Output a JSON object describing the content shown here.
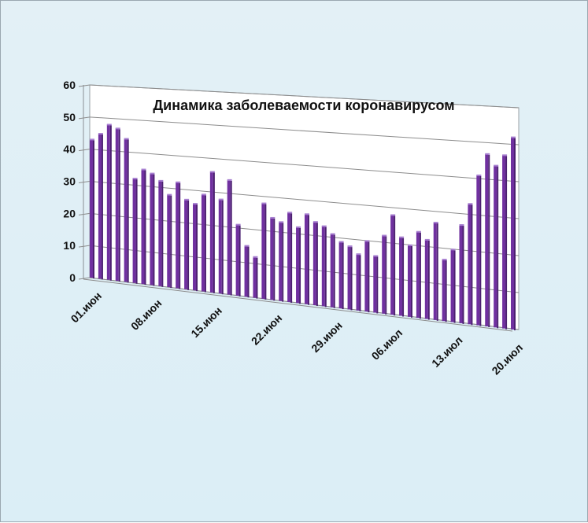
{
  "chart_data": {
    "type": "bar",
    "title": "Динамика заболеваемости коронавирусом",
    "xlabel": "",
    "ylabel": "",
    "ylim": [
      0,
      60
    ],
    "y_ticks": [
      "0",
      "10",
      "20",
      "30",
      "40",
      "50",
      "60"
    ],
    "x_tick_labels": [
      "01.июн",
      "08.июн",
      "15.июн",
      "22.июн",
      "29.июн",
      "06.июл",
      "13.июл",
      "20.июл"
    ],
    "grid": true,
    "bar_color": "#7030a0",
    "background_color": "#dbeef6",
    "plot_wall_color": "#ffffff",
    "values": [
      43,
      45,
      48,
      47,
      44,
      32,
      35,
      34,
      32,
      28,
      32,
      27,
      26,
      29,
      36,
      28,
      34,
      21,
      15,
      12,
      28,
      24,
      23,
      26,
      22,
      26,
      24,
      23,
      21,
      19,
      18,
      16,
      20,
      16,
      22,
      28,
      22,
      20,
      24,
      22,
      27,
      17,
      20,
      27,
      33,
      41,
      47,
      44,
      47,
      52
    ]
  }
}
